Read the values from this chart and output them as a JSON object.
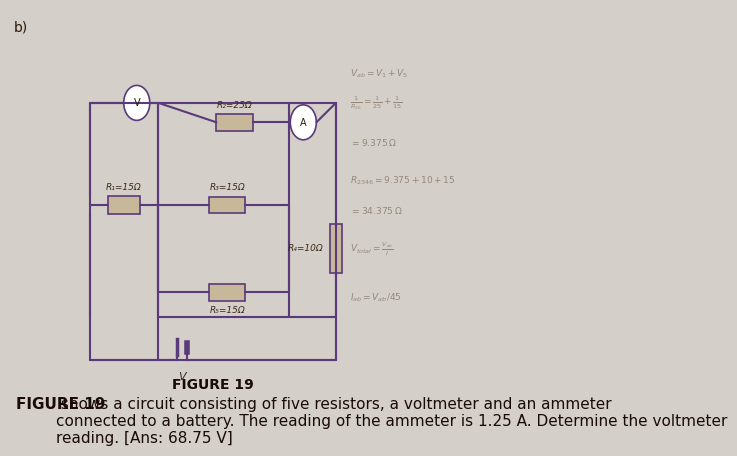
{
  "bg_color": "#d4cfc8",
  "circuit_color": "#6b4c8c",
  "resistor_fill": "#c8b89a",
  "wire_color": "#5a3a7a",
  "figure_label": "FIGURE 19",
  "caption_bold": "FIGURE 19",
  "caption_text": " shows a circuit consisting of five resistors, a voltmeter and an ammeter\nconnected to a battery. The reading of the ammeter is 1.25 A. Determine the voltmeter\nreading. [Ans: 68.75 V]",
  "label_b": "b)",
  "R1_label": "R₁=15Ω",
  "R2_label": "R₂=25Ω",
  "R3_label": "R₃=15Ω",
  "R4_label": "R₄=10Ω",
  "R5_label": "R₅=15Ω",
  "V_label": "V",
  "battery_label": "V",
  "handwritten_color": "#7a6a5a",
  "font_size_caption": 11,
  "font_size_label": 8,
  "font_size_fig_label": 10
}
